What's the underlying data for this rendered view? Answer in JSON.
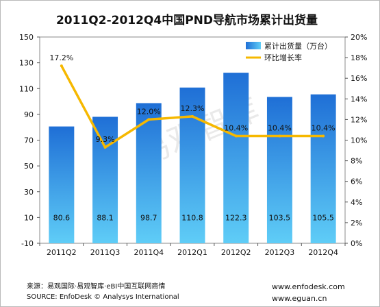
{
  "chart_data": {
    "type": "bar",
    "title": "2011Q2-2012Q4中国PND导航市场累计出货量",
    "categories": [
      "2011Q2",
      "2011Q3",
      "2011Q4",
      "2012Q1",
      "2012Q2",
      "2012Q3",
      "2012Q4"
    ],
    "series": [
      {
        "name": "累计出货量（万台）",
        "type": "bar",
        "axis": "left",
        "values": [
          80.6,
          88.1,
          98.7,
          110.8,
          122.3,
          103.5,
          105.5
        ],
        "labels": [
          "80.6",
          "88.1",
          "98.7",
          "110.8",
          "122.3",
          "103.5",
          "105.5"
        ]
      },
      {
        "name": "环比增长率",
        "type": "line",
        "axis": "right",
        "values": [
          17.2,
          9.3,
          12.0,
          12.3,
          10.4,
          10.4,
          10.4
        ],
        "labels": [
          "17.2%",
          "9.3%",
          "12.0%",
          "12.3%",
          "10.4%",
          "10.4%",
          "10.4%"
        ]
      }
    ],
    "y_left": {
      "min": -10,
      "max": 150,
      "ticks": [
        "150",
        "130",
        "110",
        "90",
        "70",
        "50",
        "30",
        "10",
        "-10"
      ]
    },
    "y_right": {
      "min": 0,
      "max": 20,
      "ticks": [
        "20%",
        "18%",
        "16%",
        "14%",
        "12%",
        "10%",
        "8%",
        "6%",
        "4%",
        "2%",
        "0%"
      ]
    },
    "legend_position": "top-right",
    "grid": false,
    "colors": {
      "bar_top": "#1f6fd6",
      "bar_bottom": "#56c6f5",
      "line": "#f6b800"
    }
  },
  "watermark": "易观智库",
  "footer": {
    "source_cn": "来源：易观国际·易观智库·eBI中国互联网商情",
    "source_en": "SOURCE: EnfoDesk © Analysys International",
    "url1": "www.enfodesk.com",
    "url2": "www.eguan.cn"
  }
}
